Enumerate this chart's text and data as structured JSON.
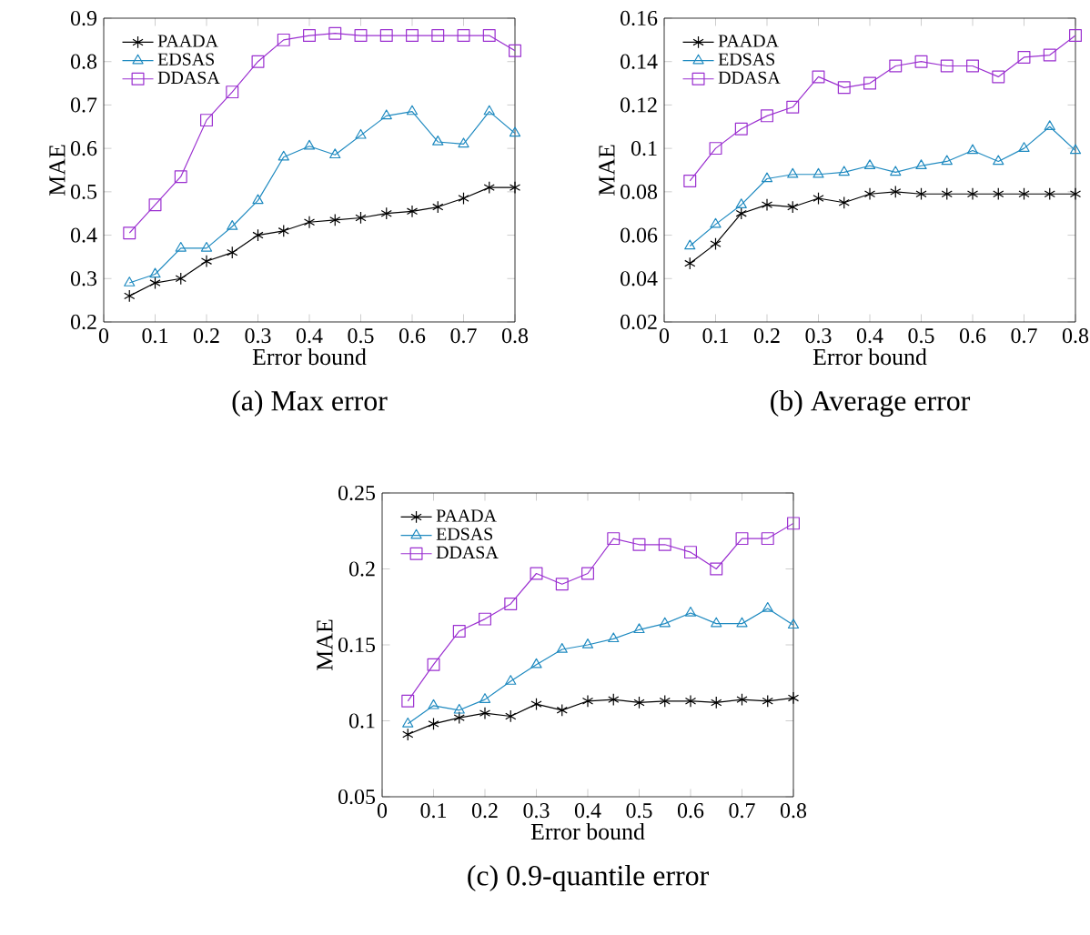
{
  "chart_data": [
    {
      "type": "line",
      "title": "(a)  Max error",
      "xlabel": "Error bound",
      "ylabel": "MAE",
      "x": [
        0.05,
        0.1,
        0.15,
        0.2,
        0.25,
        0.3,
        0.35,
        0.4,
        0.45,
        0.5,
        0.55,
        0.6,
        0.65,
        0.7,
        0.75,
        0.8
      ],
      "xlim": [
        0,
        0.8
      ],
      "xticks": [
        0,
        0.1,
        0.2,
        0.3,
        0.4,
        0.5,
        0.6,
        0.7,
        0.8
      ],
      "ylim": [
        0.2,
        0.9
      ],
      "yticks": [
        0.2,
        0.3,
        0.4,
        0.5,
        0.6,
        0.7,
        0.8,
        0.9
      ],
      "legend": "top left",
      "grid": false,
      "line_style": "solid",
      "series": [
        {
          "name": "PAADA",
          "color": "#000000",
          "marker": "cross",
          "values": [
            0.26,
            0.29,
            0.3,
            0.34,
            0.36,
            0.4,
            0.41,
            0.43,
            0.435,
            0.44,
            0.45,
            0.455,
            0.465,
            0.485,
            0.51,
            0.51
          ]
        },
        {
          "name": "EDSAS",
          "color": "#1f8ac0",
          "marker": "triangle",
          "values": [
            0.29,
            0.31,
            0.37,
            0.37,
            0.42,
            0.48,
            0.58,
            0.605,
            0.585,
            0.63,
            0.675,
            0.685,
            0.615,
            0.61,
            0.685,
            0.635
          ]
        },
        {
          "name": "DDASA",
          "color": "#9b30d0",
          "marker": "square",
          "values": [
            0.405,
            0.47,
            0.535,
            0.665,
            0.73,
            0.8,
            0.85,
            0.86,
            0.865,
            0.86,
            0.86,
            0.86,
            0.86,
            0.86,
            0.86,
            0.825
          ]
        }
      ]
    },
    {
      "type": "line",
      "title": "(b)  Average error",
      "xlabel": "Error bound",
      "ylabel": "MAE",
      "x": [
        0.05,
        0.1,
        0.15,
        0.2,
        0.25,
        0.3,
        0.35,
        0.4,
        0.45,
        0.5,
        0.55,
        0.6,
        0.65,
        0.7,
        0.75,
        0.8
      ],
      "xlim": [
        0,
        0.8
      ],
      "xticks": [
        0,
        0.1,
        0.2,
        0.3,
        0.4,
        0.5,
        0.6,
        0.7,
        0.8
      ],
      "ylim": [
        0.02,
        0.16
      ],
      "yticks": [
        0.02,
        0.04,
        0.06,
        0.08,
        0.1,
        0.12,
        0.14,
        0.16
      ],
      "legend": "top left",
      "grid": false,
      "line_style": "solid",
      "series": [
        {
          "name": "PAADA",
          "color": "#000000",
          "marker": "cross",
          "values": [
            0.047,
            0.056,
            0.07,
            0.074,
            0.073,
            0.077,
            0.075,
            0.079,
            0.08,
            0.079,
            0.079,
            0.079,
            0.079,
            0.079,
            0.079,
            0.079
          ]
        },
        {
          "name": "EDSAS",
          "color": "#1f8ac0",
          "marker": "triangle",
          "values": [
            0.055,
            0.065,
            0.074,
            0.086,
            0.088,
            0.088,
            0.089,
            0.092,
            0.089,
            0.092,
            0.094,
            0.099,
            0.094,
            0.1,
            0.11,
            0.099
          ]
        },
        {
          "name": "DDASA",
          "color": "#9b30d0",
          "marker": "square",
          "values": [
            0.085,
            0.1,
            0.109,
            0.115,
            0.119,
            0.133,
            0.128,
            0.13,
            0.138,
            0.14,
            0.138,
            0.138,
            0.133,
            0.142,
            0.143,
            0.152
          ]
        }
      ]
    },
    {
      "type": "line",
      "title": "(c)  0.9-quantile error",
      "xlabel": "Error bound",
      "ylabel": "MAE",
      "x": [
        0.05,
        0.1,
        0.15,
        0.2,
        0.25,
        0.3,
        0.35,
        0.4,
        0.45,
        0.5,
        0.55,
        0.6,
        0.65,
        0.7,
        0.75,
        0.8
      ],
      "xlim": [
        0,
        0.8
      ],
      "xticks": [
        0,
        0.1,
        0.2,
        0.3,
        0.4,
        0.5,
        0.6,
        0.7,
        0.8
      ],
      "ylim": [
        0.05,
        0.25
      ],
      "yticks": [
        0.05,
        0.1,
        0.15,
        0.2,
        0.25
      ],
      "legend": "top left",
      "grid": false,
      "line_style": "solid",
      "series": [
        {
          "name": "PAADA",
          "color": "#000000",
          "marker": "cross",
          "values": [
            0.091,
            0.098,
            0.102,
            0.105,
            0.103,
            0.111,
            0.107,
            0.113,
            0.114,
            0.112,
            0.113,
            0.113,
            0.112,
            0.114,
            0.113,
            0.115
          ]
        },
        {
          "name": "EDSAS",
          "color": "#1f8ac0",
          "marker": "triangle",
          "values": [
            0.098,
            0.11,
            0.107,
            0.114,
            0.126,
            0.137,
            0.147,
            0.15,
            0.154,
            0.16,
            0.164,
            0.171,
            0.164,
            0.164,
            0.174,
            0.163
          ]
        },
        {
          "name": "DDASA",
          "color": "#9b30d0",
          "marker": "square",
          "values": [
            0.113,
            0.137,
            0.159,
            0.167,
            0.177,
            0.197,
            0.19,
            0.197,
            0.22,
            0.216,
            0.216,
            0.211,
            0.2,
            0.22,
            0.22,
            0.23
          ]
        }
      ]
    }
  ]
}
